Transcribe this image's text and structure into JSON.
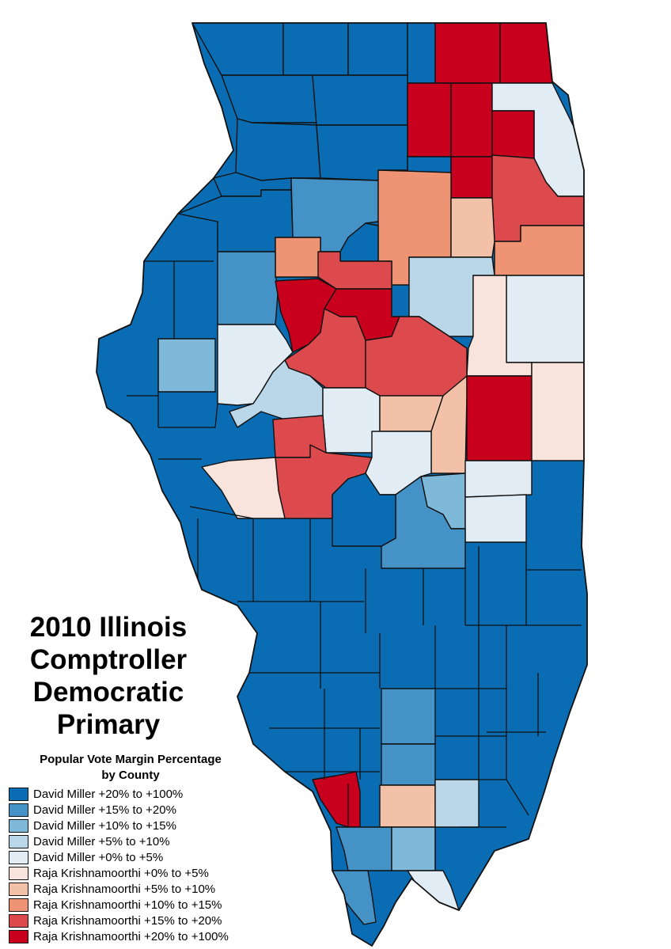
{
  "title_lines": [
    "2010 Illinois",
    "Comptroller",
    "Democratic",
    "Primary"
  ],
  "legend": {
    "title_lines": [
      "Popular Vote Margin Percentage",
      "by County"
    ],
    "items": [
      {
        "label": "David Miller +20% to +100%",
        "color": "#0a6db3"
      },
      {
        "label": "David Miller +15% to +20%",
        "color": "#4592c6"
      },
      {
        "label": "David Miller +10% to +15%",
        "color": "#7fb9da"
      },
      {
        "label": "David Miller +5% to +10%",
        "color": "#b9d7e9"
      },
      {
        "label": "David Miller +0% to +5%",
        "color": "#e1ecf4"
      },
      {
        "label": "Raja Krishnamoorthi +0% to +5%",
        "color": "#f8e4dd"
      },
      {
        "label": "Raja Krishnamoorthi +5% to +10%",
        "color": "#f3c0a8"
      },
      {
        "label": "Raja Krishnamoorthi +10% to +15%",
        "color": "#ee9474"
      },
      {
        "label": "Raja Krishnamoorthi +15% to +20%",
        "color": "#dd4a4d"
      },
      {
        "label": "Raja Krishnamoorthi +20% to +100%",
        "color": "#c8001e"
      }
    ]
  }
}
